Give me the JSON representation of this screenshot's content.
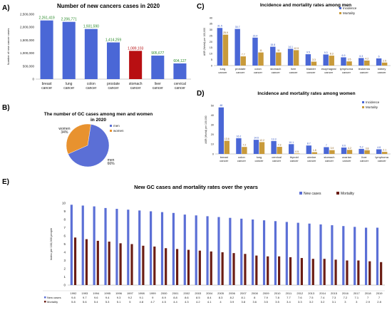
{
  "panels": {
    "A": "A)",
    "B": "B)",
    "C": "C)",
    "D": "D)",
    "E": "E)"
  },
  "colors": {
    "bar_blue": "#4a67d6",
    "bar_red": "#b80f12",
    "incidence": "#4a67d6",
    "mortality": "#c89a3a",
    "pie_men": "#5b6fd6",
    "pie_women": "#e8922f",
    "new_cases": "#5b6fd6",
    "mortality_e": "#6b1d14",
    "label_blue": "#2b4fbf",
    "label_green": "#2a8a2a",
    "label_red": "#b80f12"
  },
  "chart_data": [
    {
      "id": "A",
      "type": "bar",
      "title": "Number of new cancers cases in 2020",
      "ylabel": "Number of new cancer cases",
      "ylim": [
        0,
        2500000
      ],
      "yticks": [
        "0",
        "500,000",
        "1,000,000",
        "1,500,000",
        "2,000,000",
        "2,500,000"
      ],
      "categories": [
        "breast cancer",
        "lung cancer",
        "colon cancer",
        "prostate cancer",
        "stomach cancer",
        "liver cancer",
        "cervical cancer"
      ],
      "values": [
        2261419,
        2206771,
        1931590,
        1414259,
        1089103,
        905677,
        604127
      ],
      "value_labels": [
        "2,261,419",
        "2,206,771",
        "1,931,590",
        "1,414,259",
        "1,089,103",
        "905,677",
        "604,127"
      ],
      "highlight_index": 4
    },
    {
      "id": "B",
      "type": "pie",
      "title": "The number of GC cases among men and women in 2020",
      "legend": [
        "men",
        "women"
      ],
      "slices": [
        {
          "name": "men",
          "value": 66,
          "label": "men\n66%"
        },
        {
          "name": "women",
          "value": 34,
          "label": "women\n34%"
        }
      ]
    },
    {
      "id": "C",
      "type": "bar",
      "title": "Incidence and mortality rates among men",
      "ylabel": "ASR (World) per 100,000",
      "ylim": [
        0,
        40
      ],
      "yticks": [
        "0",
        "5",
        "10",
        "15",
        "20",
        "25",
        "30",
        "35",
        "40"
      ],
      "categories": [
        "lung cancer",
        "prostate cancer",
        "colon cancer",
        "stomach cancer",
        "liver cancer",
        "bladder cancer",
        "esophageal cancer",
        "lymphoma cancer",
        "leukemia cancer",
        "kidney cancer"
      ],
      "legend": [
        "Incidence",
        "Mortality"
      ],
      "series": [
        {
          "name": "Incidence",
          "values": [
            31.5,
            30.7,
            23.4,
            15.8,
            14.1,
            9.5,
            9.3,
            6.9,
            6.3,
            6
          ]
        },
        {
          "name": "Mortality",
          "values": [
            25.9,
            7.7,
            11,
            11,
            12.9,
            3.3,
            8.3,
            3.5,
            4.2,
            2.5
          ]
        }
      ]
    },
    {
      "id": "D",
      "type": "bar",
      "title": "Incidence and mortality rates among women",
      "ylabel": "ASR (World) per 100,000",
      "ylim": [
        0,
        50
      ],
      "yticks": [
        "0",
        "10",
        "20",
        "30",
        "40",
        "50"
      ],
      "categories": [
        "breast cancer",
        "colon cancer",
        "lung cancer",
        "cervical cancer",
        "thyroid cancer",
        "uterine cancer",
        "stomach cancer",
        "ovarian cancer",
        "liver cancer",
        "lymphoma cancer"
      ],
      "legend": [
        "Incidence",
        "Mortality"
      ],
      "series": [
        {
          "name": "Incidence",
          "values": [
            48,
            16.2,
            14.6,
            13.3,
            10.1,
            8.7,
            7,
            6.6,
            5.2,
            4.8
          ]
        },
        {
          "name": "Mortality",
          "values": [
            13.6,
            7.2,
            12.2,
            7.3,
            0.5,
            1.8,
            3.9,
            4.2,
            3.8,
            2.1
          ]
        }
      ]
    },
    {
      "id": "E",
      "type": "bar",
      "title": "New GC cases and mortality rates over the years",
      "ylabel": "Index per 100,000 people",
      "ylim": [
        0,
        10
      ],
      "yticks": [
        "0",
        "1",
        "2",
        "3",
        "4",
        "5",
        "6",
        "7",
        "8",
        "9",
        "10"
      ],
      "categories": [
        "1992",
        "1993",
        "1994",
        "1995",
        "1996",
        "1997",
        "1998",
        "1999",
        "2000",
        "2001",
        "2002",
        "2003",
        "2004",
        "2005",
        "2006",
        "2007",
        "2008",
        "2009",
        "2010",
        "2011",
        "2012",
        "2013",
        "2014",
        "2015",
        "2016",
        "2017",
        "2018",
        "2019"
      ],
      "legend": [
        "New cases",
        "Mortality"
      ],
      "table_rows": [
        "New cases",
        "Mortality"
      ],
      "series": [
        {
          "name": "New cases",
          "values": [
            9.8,
            9.7,
            9.6,
            9.4,
            9.3,
            9.2,
            9.1,
            9,
            8.9,
            8.8,
            8.6,
            8.5,
            8.4,
            8.3,
            8.2,
            8.1,
            8,
            7.9,
            7.8,
            7.7,
            7.6,
            7.5,
            7.4,
            7.3,
            7.2,
            7.1,
            7,
            7
          ]
        },
        {
          "name": "Mortality",
          "values": [
            5.8,
            5.6,
            5.4,
            5.3,
            5.1,
            5,
            4.8,
            4.7,
            4.5,
            4.4,
            4.3,
            4.2,
            4.1,
            4,
            3.9,
            3.8,
            3.6,
            3.5,
            3.5,
            3.4,
            3.3,
            3.2,
            3.2,
            3.1,
            3,
            3,
            2.9,
            2.8
          ]
        }
      ]
    }
  ]
}
